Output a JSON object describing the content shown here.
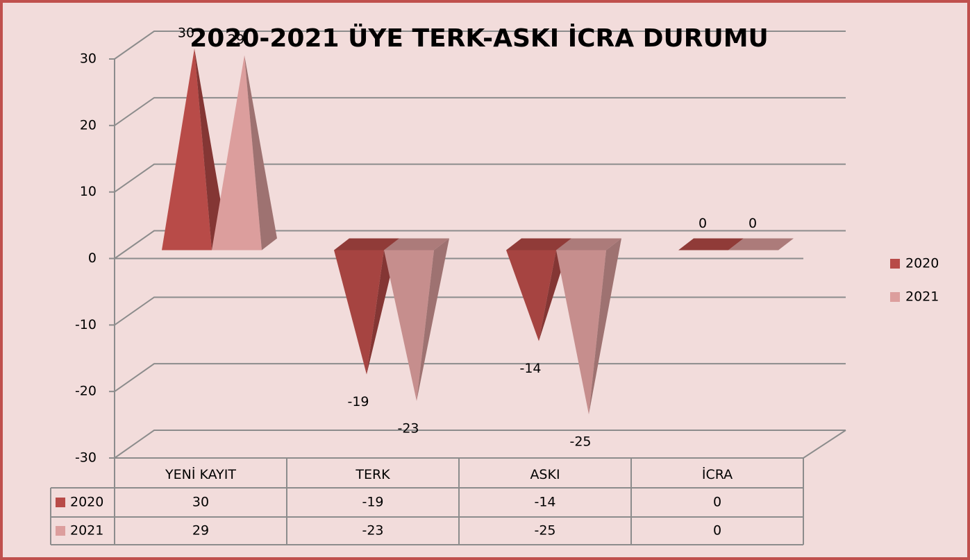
{
  "chart_data": {
    "type": "pyramid3d",
    "title": "2020-2021 ÜYE TERK-ASKI İCRA DURUMU",
    "categories": [
      "YENİ KAYIT",
      "TERK",
      "ASKI",
      "İCRA"
    ],
    "series": [
      {
        "name": "2020",
        "color": "#b84b48",
        "values": [
          30,
          -19,
          -14,
          0
        ]
      },
      {
        "name": "2021",
        "color": "#dc9e9d",
        "values": [
          29,
          -23,
          -25,
          0
        ]
      }
    ],
    "ylim": [
      -30,
      30
    ],
    "yticks": [
      -30,
      -20,
      -10,
      0,
      10,
      20,
      30
    ],
    "grid": true,
    "legend": "right",
    "data_table": true
  }
}
